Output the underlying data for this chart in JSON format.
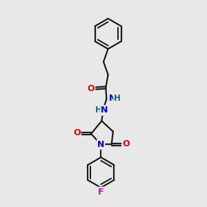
{
  "bg_color": "#e8e8e8",
  "bond_color": "#1a1a1a",
  "line_width": 1.6,
  "atom_colors": {
    "O": "#dd0000",
    "N": "#0000cc",
    "F": "#cc00cc",
    "H": "#007070",
    "C": "#1a1a1a"
  },
  "font_size": 9.0,
  "font_size_small": 8.5
}
